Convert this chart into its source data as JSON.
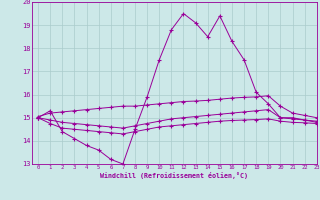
{
  "xlabel": "Windchill (Refroidissement éolien,°C)",
  "xlim": [
    -0.5,
    23
  ],
  "ylim": [
    13,
    20
  ],
  "yticks": [
    13,
    14,
    15,
    16,
    17,
    18,
    19,
    20
  ],
  "xticks": [
    0,
    1,
    2,
    3,
    4,
    5,
    6,
    7,
    8,
    9,
    10,
    11,
    12,
    13,
    14,
    15,
    16,
    17,
    18,
    19,
    20,
    21,
    22,
    23
  ],
  "background_color": "#cce8e8",
  "grid_color": "#aacccc",
  "line_color": "#990099",
  "hours": [
    0,
    1,
    2,
    3,
    4,
    5,
    6,
    7,
    8,
    9,
    10,
    11,
    12,
    13,
    14,
    15,
    16,
    17,
    18,
    19,
    20,
    21,
    22,
    23
  ],
  "line1": [
    15.0,
    15.3,
    14.4,
    14.1,
    13.8,
    13.6,
    13.2,
    13.0,
    14.5,
    15.9,
    17.5,
    18.8,
    19.5,
    19.1,
    18.5,
    19.4,
    18.3,
    17.5,
    16.1,
    15.6,
    15.0,
    15.0,
    14.9,
    14.8
  ],
  "line2": [
    15.05,
    15.2,
    15.25,
    15.3,
    15.35,
    15.4,
    15.45,
    15.5,
    15.5,
    15.55,
    15.6,
    15.65,
    15.7,
    15.72,
    15.75,
    15.8,
    15.85,
    15.88,
    15.9,
    15.95,
    15.5,
    15.2,
    15.1,
    15.0
  ],
  "line3": [
    15.0,
    14.9,
    14.8,
    14.75,
    14.7,
    14.65,
    14.6,
    14.55,
    14.65,
    14.75,
    14.85,
    14.95,
    15.0,
    15.05,
    15.1,
    15.15,
    15.2,
    15.25,
    15.3,
    15.35,
    15.0,
    14.95,
    14.9,
    14.85
  ],
  "line4": [
    15.0,
    14.75,
    14.55,
    14.5,
    14.45,
    14.4,
    14.35,
    14.3,
    14.4,
    14.5,
    14.6,
    14.65,
    14.7,
    14.75,
    14.8,
    14.85,
    14.88,
    14.9,
    14.92,
    14.95,
    14.85,
    14.8,
    14.78,
    14.75
  ]
}
